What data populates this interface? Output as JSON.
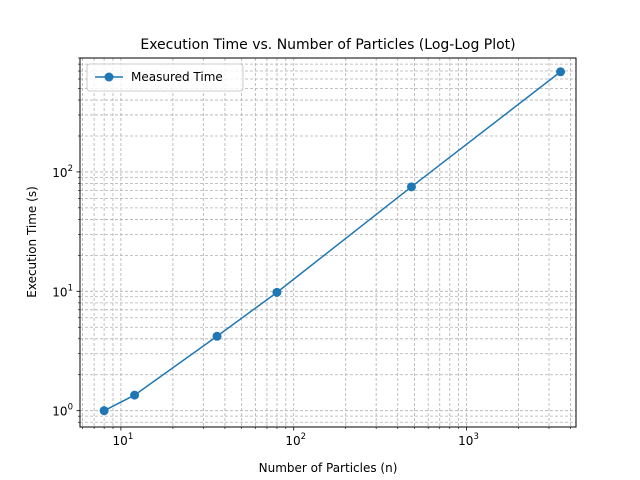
{
  "chart_data": {
    "type": "line",
    "title": "Execution Time vs. Number of Particles (Log-Log Plot)",
    "xlabel": "Number of Particles (n)",
    "ylabel": "Execution Time (s)",
    "xscale": "log",
    "yscale": "log",
    "xlim": [
      5.8,
      4300
    ],
    "ylim": [
      0.73,
      900
    ],
    "x_ticks": [
      {
        "value": 10,
        "base": "10",
        "exp": "1"
      },
      {
        "value": 100,
        "base": "10",
        "exp": "2"
      },
      {
        "value": 1000,
        "base": "10",
        "exp": "3"
      }
    ],
    "y_ticks": [
      {
        "value": 1,
        "base": "10",
        "exp": "0"
      },
      {
        "value": 10,
        "base": "10",
        "exp": "1"
      },
      {
        "value": 100,
        "base": "10",
        "exp": "2"
      }
    ],
    "grid": "both-major-minor-dashed",
    "legend_position": "top-left",
    "series": [
      {
        "name": "Measured Time",
        "color": "#1f77b4",
        "marker": "circle",
        "x": [
          8,
          12,
          36,
          80,
          480,
          3500
        ],
        "y": [
          1.0,
          1.35,
          4.2,
          9.8,
          75,
          690
        ]
      }
    ]
  }
}
